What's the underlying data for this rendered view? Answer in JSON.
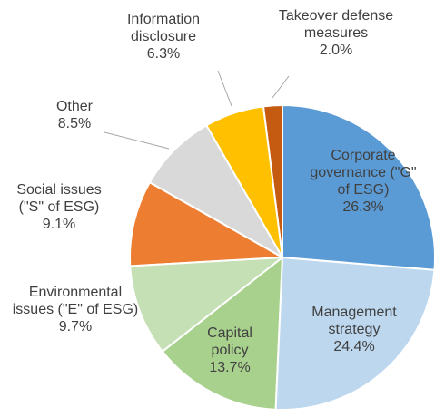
{
  "chart_data": {
    "type": "pie",
    "categories": [
      "Corporate governance (\"G\" of ESG)",
      "Management strategy",
      "Capital policy",
      "Environmental issues (\"E\" of ESG)",
      "Social issues (\"S\" of ESG)",
      "Other",
      "Information disclosure",
      "Takeover defense measures"
    ],
    "values": [
      26.3,
      24.4,
      13.7,
      9.7,
      9.1,
      8.5,
      6.3,
      2.0
    ],
    "value_labels": [
      "26.3%",
      "24.4%",
      "13.7%",
      "9.7%",
      "9.1%",
      "8.5%",
      "6.3%",
      "2.0%"
    ],
    "colors": [
      "#5b9bd5",
      "#bdd7ee",
      "#a9d18e",
      "#c5e0b4",
      "#ed7d31",
      "#d9d9d9",
      "#ffc000",
      "#c55a11"
    ]
  }
}
